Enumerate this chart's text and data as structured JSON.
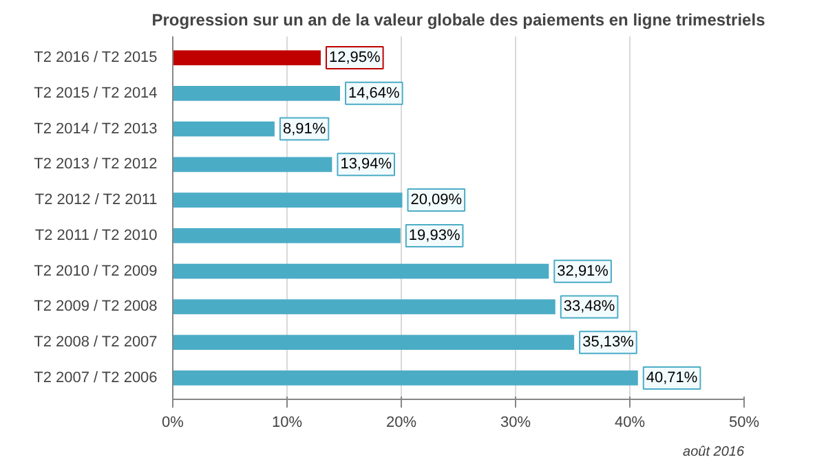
{
  "chart_data": {
    "type": "bar",
    "orientation": "horizontal",
    "title": "Progression sur un an de la valeur globale des paiements en ligne trimestriels",
    "categories": [
      "T2 2016 / T2 2015",
      "T2 2015 / T2 2014",
      "T2 2014 / T2 2013",
      "T2 2013 / T2 2012",
      "T2 2012 / T2 2011",
      "T2 2011 / T2 2010",
      "T2 2010 / T2 2009",
      "T2 2009 / T2 2008",
      "T2 2008 / T2 2007",
      "T2 2007 / T2 2006"
    ],
    "values": [
      12.95,
      14.64,
      8.91,
      13.94,
      20.09,
      19.93,
      32.91,
      33.48,
      35.13,
      40.71
    ],
    "value_labels": [
      "12,95%",
      "14,64%",
      "8,91%",
      "13,94%",
      "20,09%",
      "19,93%",
      "32,91%",
      "33,48%",
      "35,13%",
      "40,71%"
    ],
    "colors": [
      "#c00000",
      "#4bacc6",
      "#4bacc6",
      "#4bacc6",
      "#4bacc6",
      "#4bacc6",
      "#4bacc6",
      "#4bacc6",
      "#4bacc6",
      "#4bacc6"
    ],
    "xlim": [
      0,
      50
    ],
    "xticks": [
      {
        "value": 0,
        "label": "0%"
      },
      {
        "value": 10,
        "label": "10%"
      },
      {
        "value": 20,
        "label": "20%"
      },
      {
        "value": 30,
        "label": "30%"
      },
      {
        "value": 40,
        "label": "40%"
      },
      {
        "value": 50,
        "label": "50%"
      }
    ],
    "grid": "x",
    "annotations": [
      "août 2016"
    ]
  }
}
